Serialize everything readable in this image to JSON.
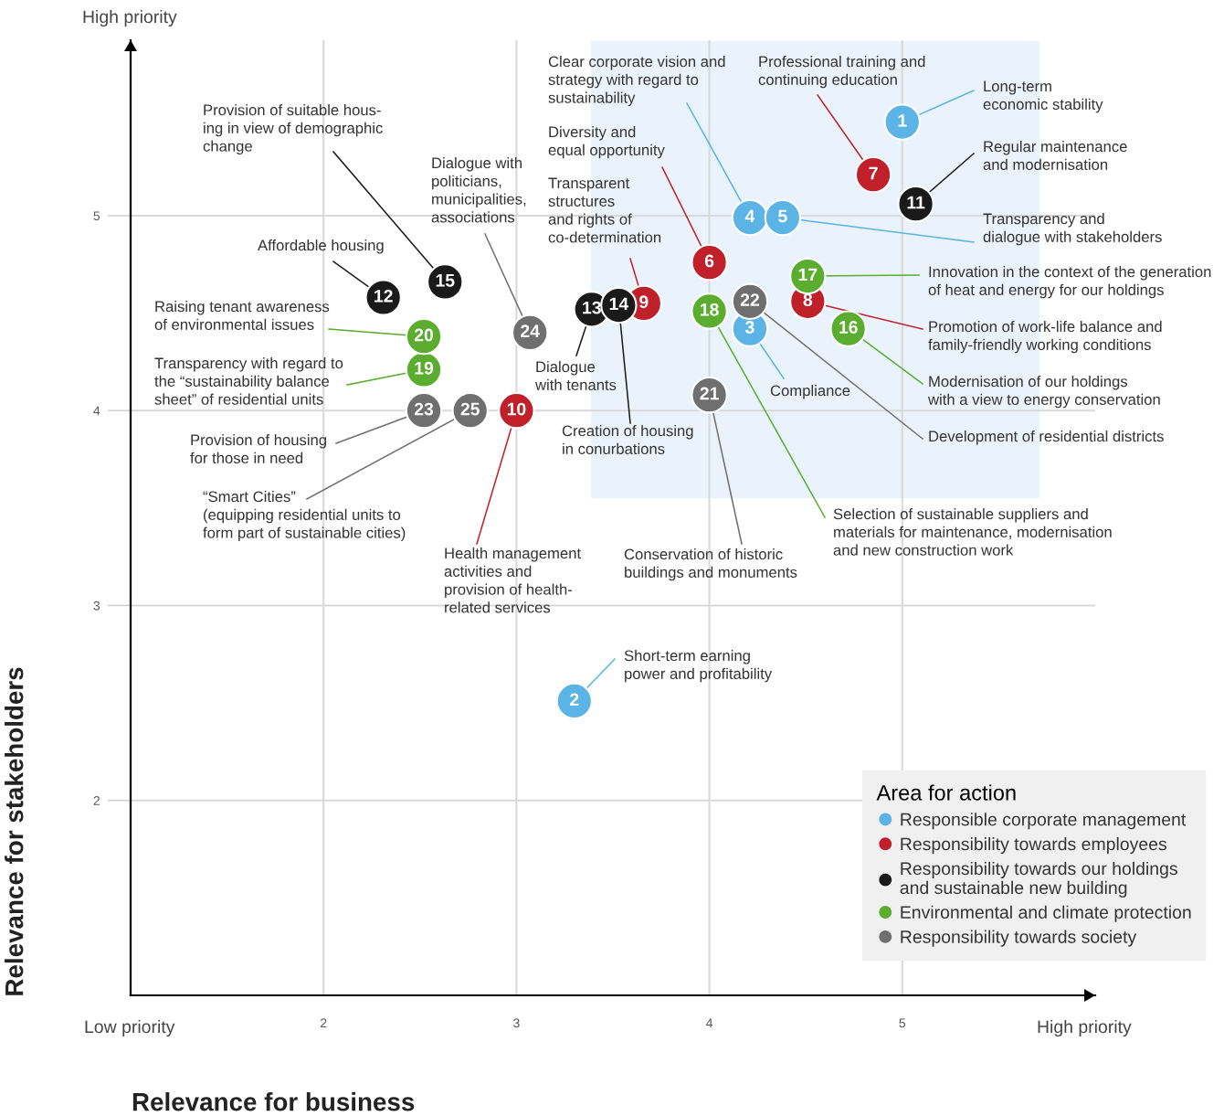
{
  "chart_data": {
    "type": "scatter",
    "xlabel": "Relevance for business",
    "ylabel": "Relevance for stakeholders",
    "xlim": [
      1,
      6
    ],
    "ylim": [
      1,
      5.9
    ],
    "xticks": [
      2,
      3,
      4,
      5
    ],
    "yticks": [
      2,
      3,
      4,
      5
    ],
    "grid": true,
    "marker": "circle",
    "legend": "bottom right",
    "legend_title": "Area for action",
    "series": [
      {
        "name": "Responsible corporate management",
        "color": "#5bb4e5",
        "x": [
          5.0,
          3.3,
          4.21,
          4.21,
          4.38
        ],
        "values": [
          5.48,
          2.51,
          4.42,
          4.99,
          4.99
        ]
      },
      {
        "name": "Responsibility towards employees",
        "color": "#c0202a",
        "x": [
          4.0,
          4.85,
          4.51,
          3.66,
          3.0
        ],
        "values": [
          4.76,
          5.21,
          4.56,
          4.55,
          4.0
        ]
      },
      {
        "name": "Responsibility towards our holdings\nand sustainable new building",
        "color": "#1a1a1a",
        "x": [
          5.07,
          2.31,
          3.39,
          3.53,
          2.63
        ],
        "values": [
          5.06,
          4.58,
          4.52,
          4.54,
          4.66
        ]
      },
      {
        "name": "Environmental and climate protection",
        "color": "#5aad2e",
        "x": [
          4.72,
          4.51,
          4.0,
          2.52,
          2.52
        ],
        "values": [
          4.42,
          4.69,
          4.51,
          4.21,
          4.38
        ]
      },
      {
        "name": "Responsibility towards society",
        "color": "#6f6f6f",
        "x": [
          4.0,
          4.21,
          2.52,
          3.07,
          2.76
        ],
        "values": [
          4.08,
          4.56,
          4.0,
          4.4,
          4.0
        ]
      }
    ],
    "annotations": [
      {
        "text": "1",
        "x": 5.0,
        "y": 5.48
      },
      {
        "text": "2",
        "x": 3.3,
        "y": 2.51
      },
      {
        "text": "3",
        "x": 4.21,
        "y": 4.42
      },
      {
        "text": "4",
        "x": 4.21,
        "y": 4.99
      },
      {
        "text": "5",
        "x": 4.38,
        "y": 4.99
      },
      {
        "text": "6",
        "x": 4.0,
        "y": 4.76
      },
      {
        "text": "7",
        "x": 4.85,
        "y": 5.21
      },
      {
        "text": "8",
        "x": 4.51,
        "y": 4.56
      },
      {
        "text": "9",
        "x": 3.66,
        "y": 4.55
      },
      {
        "text": "10",
        "x": 3.0,
        "y": 4.0
      },
      {
        "text": "11",
        "x": 5.07,
        "y": 5.06
      },
      {
        "text": "12",
        "x": 2.31,
        "y": 4.58
      },
      {
        "text": "13",
        "x": 3.39,
        "y": 4.52
      },
      {
        "text": "14",
        "x": 3.53,
        "y": 4.54
      },
      {
        "text": "15",
        "x": 2.63,
        "y": 4.66
      },
      {
        "text": "16",
        "x": 4.72,
        "y": 4.42
      },
      {
        "text": "17",
        "x": 4.51,
        "y": 4.69
      },
      {
        "text": "18",
        "x": 4.0,
        "y": 4.51
      },
      {
        "text": "19",
        "x": 2.52,
        "y": 4.21
      },
      {
        "text": "20",
        "x": 2.52,
        "y": 4.38
      },
      {
        "text": "21",
        "x": 4.0,
        "y": 4.08
      },
      {
        "text": "22",
        "x": 4.21,
        "y": 4.56
      },
      {
        "text": "23",
        "x": 2.52,
        "y": 4.0
      },
      {
        "text": "24",
        "x": 3.07,
        "y": 4.4
      },
      {
        "text": "25",
        "x": 2.76,
        "y": 4.0
      },
      {
        "text": "Long-term\neconomic stability",
        "x": 5.0,
        "y": 5.48
      },
      {
        "text": "Short-term earning\npower and profitability",
        "x": 3.3,
        "y": 2.51
      },
      {
        "text": "Compliance",
        "x": 4.21,
        "y": 4.42
      },
      {
        "text": "Clear corporate vision and\nstrategy with regard to\nsustainability",
        "x": 4.21,
        "y": 4.99
      },
      {
        "text": "Transparency and\ndialogue with stakeholders",
        "x": 4.38,
        "y": 4.99
      },
      {
        "text": "Diversity and\nequal opportunity",
        "x": 4.0,
        "y": 4.76
      },
      {
        "text": "Professional training and\ncontinuing education",
        "x": 4.85,
        "y": 5.21
      },
      {
        "text": "Promotion of work-life balance and\nfamily-friendly working conditions",
        "x": 4.51,
        "y": 4.56
      },
      {
        "text": "Transparent\nstructures\nand rights of\nco-determination",
        "x": 3.66,
        "y": 4.55
      },
      {
        "text": "Health management\nactivities and\nprovision of health-\nrelated services",
        "x": 3.0,
        "y": 4.0
      },
      {
        "text": "Regular maintenance\nand modernisation",
        "x": 5.07,
        "y": 5.06
      },
      {
        "text": "Affordable housing",
        "x": 2.31,
        "y": 4.58
      },
      {
        "text": "Dialogue\nwith tenants",
        "x": 3.39,
        "y": 4.52
      },
      {
        "text": "Creation of housing\nin conurbations",
        "x": 3.53,
        "y": 4.54
      },
      {
        "text": "Provision of suitable hous-\ning in view of demographic\nchange",
        "x": 2.63,
        "y": 4.66
      },
      {
        "text": "Modernisation of our holdings\nwith a view to energy conservation",
        "x": 4.72,
        "y": 4.42
      },
      {
        "text": "Innovation in the context of the generation\nof heat and energy for our holdings",
        "x": 4.51,
        "y": 4.69
      },
      {
        "text": "Selection of sustainable suppliers and\nmaterials for maintenance, modernisation\nand new construction work",
        "x": 4.0,
        "y": 4.51
      },
      {
        "text": "Transparency with regard to\nthe “sustainability balance\nsheet” of residential units",
        "x": 2.52,
        "y": 4.21
      },
      {
        "text": "Raising tenant awareness\nof environmental issues",
        "x": 2.52,
        "y": 4.38
      },
      {
        "text": "Conservation of historic\nbuildings and monuments",
        "x": 4.0,
        "y": 4.08
      },
      {
        "text": "Development of residential districts",
        "x": 4.21,
        "y": 4.56
      },
      {
        "text": "Provision of housing\nfor those in need",
        "x": 2.52,
        "y": 4.0
      },
      {
        "text": "Dialogue with\npoliticians,\nmunicipalities,\nassociations",
        "x": 3.07,
        "y": 4.4
      },
      {
        "text": "“Smart Cities”\n(equipping residential units to\nform part of sustainable cities)",
        "x": 2.76,
        "y": 4.0
      },
      "High priority",
      "Low priority",
      "High priority"
    ]
  }
}
